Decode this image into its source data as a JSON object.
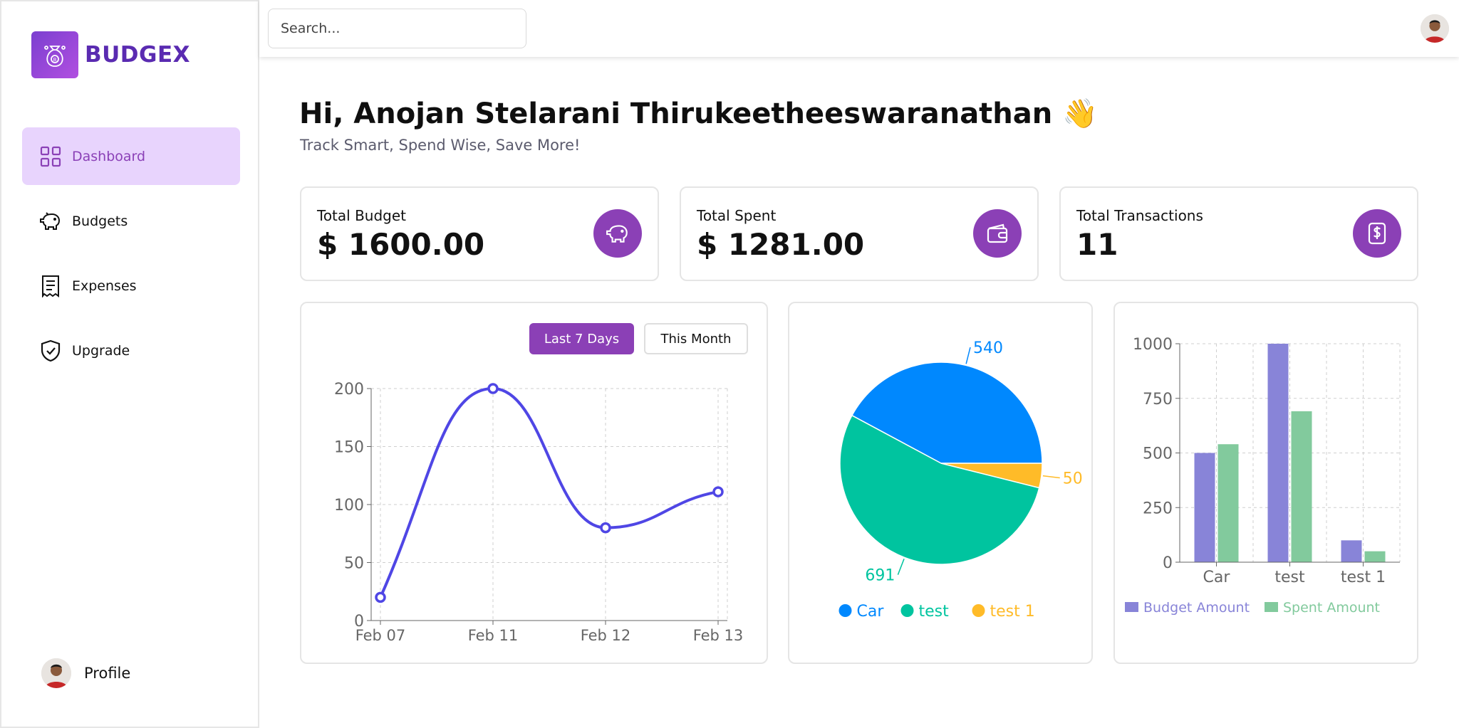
{
  "app": {
    "name": "BUDGEX"
  },
  "sidebar": {
    "items": [
      {
        "label": "Dashboard",
        "icon": "grid-icon",
        "active": true
      },
      {
        "label": "Budgets",
        "icon": "piggy-bank-icon"
      },
      {
        "label": "Expenses",
        "icon": "receipt-icon"
      },
      {
        "label": "Upgrade",
        "icon": "shield-check-icon"
      }
    ],
    "profile_label": "Profile"
  },
  "header": {
    "search_placeholder": "Search..."
  },
  "main": {
    "greeting": "Hi, Anojan Stelarani Thirukeetheeswaranathan 👋",
    "subtitle": "Track Smart, Spend Wise, Save More!",
    "stats": [
      {
        "label": "Total Budget",
        "value": "$ 1600.00",
        "icon": "piggy-bank-icon"
      },
      {
        "label": "Total Spent",
        "value": "$ 1281.00",
        "icon": "wallet-icon"
      },
      {
        "label": "Total Transactions",
        "value": "11",
        "icon": "dollar-receipt-icon"
      }
    ],
    "range_buttons": [
      "Last 7 Days",
      "This Month"
    ]
  },
  "colors": {
    "accent": "#8b40b6",
    "line": "#4f46e5",
    "pie": [
      "#0088fe",
      "#00c49f",
      "#ffbb28"
    ],
    "budget_bar": "#8884d8",
    "spent_bar": "#82ca9d"
  },
  "chart_data": [
    {
      "type": "line",
      "x": [
        "Feb 07",
        "Feb 11",
        "Feb 12",
        "Feb 13"
      ],
      "values": [
        20,
        200,
        80,
        111
      ],
      "ylim": [
        0,
        200
      ],
      "yticks": [
        0,
        50,
        100,
        150,
        200
      ],
      "grid": true
    },
    {
      "type": "pie",
      "labels": [
        "Car",
        "test",
        "test 1"
      ],
      "values": [
        540,
        691,
        50
      ],
      "legend": "bottom"
    },
    {
      "type": "bar",
      "categories": [
        "Car",
        "test",
        "test 1"
      ],
      "series": [
        {
          "name": "Budget Amount",
          "values": [
            500,
            1000,
            100
          ]
        },
        {
          "name": "Spent Amount",
          "values": [
            540,
            691,
            50
          ]
        }
      ],
      "ylim": [
        0,
        1000
      ],
      "yticks": [
        0,
        250,
        500,
        750,
        1000
      ],
      "grid": true,
      "legend": "bottom"
    }
  ]
}
